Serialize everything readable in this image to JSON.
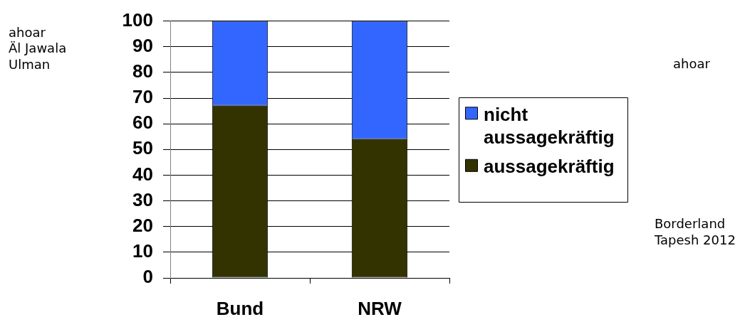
{
  "chart_data": {
    "type": "bar",
    "categories": [
      "Bund",
      "NRW"
    ],
    "series": [
      {
        "name": "aussagekräftig",
        "color": "#333300",
        "values": [
          67,
          54
        ]
      },
      {
        "name": "nicht aussagekräftig",
        "color": "#3366ff",
        "values": [
          33,
          46
        ]
      }
    ],
    "stacked": true,
    "ylim": [
      0,
      100
    ],
    "yticks": [
      0,
      10,
      20,
      30,
      40,
      50,
      60,
      70,
      80,
      90,
      100
    ],
    "grid": "y",
    "legend": "right",
    "annotations": [
      "ahoar\nÄl Jawala\nUlman",
      "ahoar",
      "Borderland\nTapesh 2012"
    ]
  }
}
